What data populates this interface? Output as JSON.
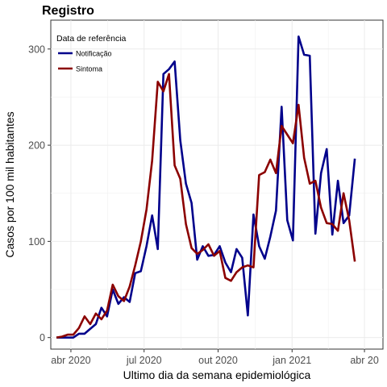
{
  "chart_data": {
    "type": "line",
    "title": "Registro",
    "xlabel": "Ultimo dia da semana epidemiológica",
    "ylabel": "Casos por 100 mil habitantes",
    "xlim": [
      "2020-03-07",
      "2021-04-24"
    ],
    "ylim": [
      -12,
      330
    ],
    "x_ticks": [
      {
        "date": "2020-04-01",
        "label": "abr 2020"
      },
      {
        "date": "2020-07-01",
        "label": "jul 2020"
      },
      {
        "date": "2020-10-01",
        "label": "out 2020"
      },
      {
        "date": "2021-01-01",
        "label": "jan 2021"
      },
      {
        "date": "2021-04-01",
        "label": "abr 20"
      }
    ],
    "y_ticks": [
      0,
      100,
      200,
      300
    ],
    "grid": true,
    "legend": {
      "title": "Data de referência",
      "placement": "top-left"
    },
    "series": [
      {
        "name": "Notificação",
        "color": "#00008B",
        "points": [
          [
            "2020-03-14",
            0
          ],
          [
            "2020-03-21",
            0
          ],
          [
            "2020-03-28",
            0
          ],
          [
            "2020-04-04",
            0
          ],
          [
            "2020-04-11",
            4
          ],
          [
            "2020-04-18",
            4
          ],
          [
            "2020-04-25",
            9
          ],
          [
            "2020-05-02",
            14
          ],
          [
            "2020-05-09",
            31
          ],
          [
            "2020-05-16",
            22
          ],
          [
            "2020-05-23",
            50
          ],
          [
            "2020-05-30",
            35
          ],
          [
            "2020-06-06",
            42
          ],
          [
            "2020-06-13",
            37
          ],
          [
            "2020-06-20",
            67
          ],
          [
            "2020-06-27",
            69
          ],
          [
            "2020-07-04",
            95
          ],
          [
            "2020-07-11",
            127
          ],
          [
            "2020-07-18",
            92
          ],
          [
            "2020-07-25",
            274
          ],
          [
            "2020-08-01",
            279
          ],
          [
            "2020-08-08",
            287
          ],
          [
            "2020-08-15",
            205
          ],
          [
            "2020-08-22",
            160
          ],
          [
            "2020-08-29",
            140
          ],
          [
            "2020-09-05",
            81
          ],
          [
            "2020-09-12",
            95
          ],
          [
            "2020-09-19",
            85
          ],
          [
            "2020-09-26",
            86
          ],
          [
            "2020-10-03",
            95
          ],
          [
            "2020-10-10",
            78
          ],
          [
            "2020-10-17",
            68
          ],
          [
            "2020-10-24",
            92
          ],
          [
            "2020-10-31",
            83
          ],
          [
            "2020-11-07",
            23
          ],
          [
            "2020-11-14",
            128
          ],
          [
            "2020-11-21",
            95
          ],
          [
            "2020-11-28",
            82
          ],
          [
            "2020-12-05",
            105
          ],
          [
            "2020-12-12",
            132
          ],
          [
            "2020-12-19",
            240
          ],
          [
            "2020-12-26",
            122
          ],
          [
            "2021-01-02",
            101
          ],
          [
            "2021-01-09",
            313
          ],
          [
            "2021-01-16",
            294
          ],
          [
            "2021-01-23",
            293
          ],
          [
            "2021-01-30",
            108
          ],
          [
            "2021-02-06",
            171
          ],
          [
            "2021-02-13",
            196
          ],
          [
            "2021-02-20",
            107
          ],
          [
            "2021-02-27",
            163
          ],
          [
            "2021-03-06",
            119
          ],
          [
            "2021-03-13",
            127
          ],
          [
            "2021-03-20",
            186
          ]
        ]
      },
      {
        "name": "Sintoma",
        "color": "#8B0000",
        "points": [
          [
            "2020-03-14",
            0
          ],
          [
            "2020-03-21",
            1
          ],
          [
            "2020-03-28",
            3
          ],
          [
            "2020-04-04",
            3
          ],
          [
            "2020-04-11",
            10
          ],
          [
            "2020-04-18",
            22
          ],
          [
            "2020-04-25",
            14
          ],
          [
            "2020-05-02",
            25
          ],
          [
            "2020-05-09",
            19
          ],
          [
            "2020-05-16",
            28
          ],
          [
            "2020-05-23",
            55
          ],
          [
            "2020-05-30",
            43
          ],
          [
            "2020-06-06",
            38
          ],
          [
            "2020-06-13",
            53
          ],
          [
            "2020-06-20",
            75
          ],
          [
            "2020-06-27",
            100
          ],
          [
            "2020-07-04",
            133
          ],
          [
            "2020-07-11",
            184
          ],
          [
            "2020-07-18",
            266
          ],
          [
            "2020-07-25",
            256
          ],
          [
            "2020-08-01",
            274
          ],
          [
            "2020-08-08",
            179
          ],
          [
            "2020-08-15",
            165
          ],
          [
            "2020-08-22",
            118
          ],
          [
            "2020-08-29",
            93
          ],
          [
            "2020-09-05",
            87
          ],
          [
            "2020-09-12",
            91
          ],
          [
            "2020-09-19",
            97
          ],
          [
            "2020-09-26",
            85
          ],
          [
            "2020-10-03",
            90
          ],
          [
            "2020-10-10",
            62
          ],
          [
            "2020-10-17",
            59
          ],
          [
            "2020-10-24",
            68
          ],
          [
            "2020-10-31",
            73
          ],
          [
            "2020-11-07",
            75
          ],
          [
            "2020-11-14",
            73
          ],
          [
            "2020-11-21",
            169
          ],
          [
            "2020-11-28",
            172
          ],
          [
            "2020-12-05",
            185
          ],
          [
            "2020-12-12",
            171
          ],
          [
            "2020-12-19",
            220
          ],
          [
            "2020-12-26",
            211
          ],
          [
            "2021-01-02",
            202
          ],
          [
            "2021-01-09",
            242
          ],
          [
            "2021-01-16",
            187
          ],
          [
            "2021-01-23",
            160
          ],
          [
            "2021-01-30",
            163
          ],
          [
            "2021-02-06",
            135
          ],
          [
            "2021-02-13",
            119
          ],
          [
            "2021-02-20",
            118
          ],
          [
            "2021-02-27",
            111
          ],
          [
            "2021-03-06",
            150
          ],
          [
            "2021-03-13",
            122
          ],
          [
            "2021-03-20",
            79
          ]
        ]
      }
    ]
  }
}
